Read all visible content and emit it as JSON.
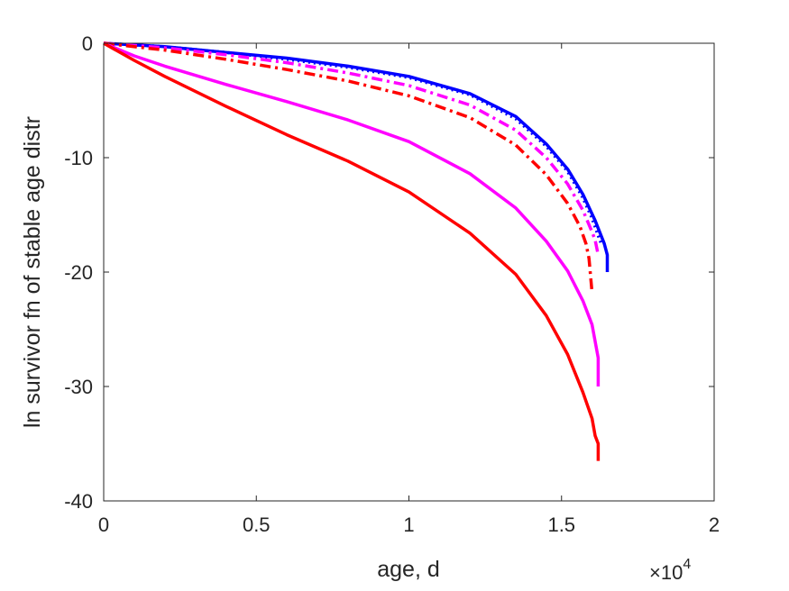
{
  "chart_data": {
    "type": "line",
    "title": "",
    "xlabel": "age, d",
    "ylabel": "ln survivor fn of stable age distr",
    "xlim": [
      0,
      20000
    ],
    "ylim": [
      -40,
      0
    ],
    "x_ticks": [
      0,
      5000,
      10000,
      15000,
      20000
    ],
    "x_tick_labels": [
      "0",
      "0.5",
      "1",
      "1.5",
      "2"
    ],
    "x_multiplier_base": "×10",
    "x_multiplier_exponent": "4",
    "y_ticks": [
      -40,
      -30,
      -20,
      -10,
      0
    ],
    "y_tick_labels": [
      "-40",
      "-30",
      "-20",
      "-10",
      "0"
    ],
    "grid": false,
    "legend": "none",
    "series": [
      {
        "color": "#0000ff",
        "style": "solid",
        "x": [
          0,
          2000,
          4000,
          6000,
          8000,
          10000,
          12000,
          13500,
          14500,
          15200,
          15700,
          16100,
          16400,
          16500,
          16500
        ],
        "y": [
          0,
          -0.3,
          -0.8,
          -1.3,
          -2.0,
          -2.9,
          -4.4,
          -6.4,
          -8.8,
          -11.0,
          -13.2,
          -15.5,
          -17.5,
          -18.5,
          -20.0
        ]
      },
      {
        "color": "#0000ff",
        "style": "dotted",
        "x": [
          0,
          2000,
          4000,
          6000,
          8000,
          10000,
          12000,
          13500,
          14500,
          15200,
          15700,
          16000,
          16200,
          16300
        ],
        "y": [
          0,
          -0.3,
          -0.8,
          -1.4,
          -2.1,
          -3.0,
          -4.5,
          -6.6,
          -9.0,
          -11.2,
          -13.5,
          -15.3,
          -16.8,
          -17.5
        ]
      },
      {
        "color": "#ff00ff",
        "style": "dashdot",
        "x": [
          0,
          2000,
          4000,
          6000,
          8000,
          10000,
          12000,
          13500,
          14500,
          15200,
          15700,
          16000,
          16100,
          16200
        ],
        "y": [
          0,
          -0.4,
          -1.0,
          -1.7,
          -2.6,
          -3.7,
          -5.4,
          -7.6,
          -10.0,
          -12.3,
          -14.6,
          -16.5,
          -17.2,
          -18.5
        ]
      },
      {
        "color": "#ff0000",
        "style": "dashdot",
        "x": [
          0,
          2000,
          4000,
          6000,
          8000,
          10000,
          12000,
          13500,
          14500,
          15200,
          15600,
          15800,
          15900,
          16000
        ],
        "y": [
          0,
          -0.6,
          -1.4,
          -2.3,
          -3.3,
          -4.6,
          -6.5,
          -8.9,
          -11.5,
          -14.0,
          -16.0,
          -17.5,
          -18.8,
          -21.8
        ]
      },
      {
        "color": "#ff00ff",
        "style": "solid",
        "x": [
          0,
          1000,
          2000,
          4000,
          6000,
          8000,
          10000,
          12000,
          13500,
          14500,
          15200,
          15700,
          16000,
          16200,
          16200
        ],
        "y": [
          0,
          -1.1,
          -2.0,
          -3.6,
          -5.1,
          -6.7,
          -8.6,
          -11.4,
          -14.4,
          -17.3,
          -19.9,
          -22.5,
          -24.6,
          -27.5,
          -30.0
        ]
      },
      {
        "color": "#ff0000",
        "style": "solid",
        "x": [
          0,
          1000,
          2000,
          4000,
          6000,
          8000,
          10000,
          12000,
          13500,
          14500,
          15200,
          15700,
          16000,
          16100,
          16200,
          16200
        ],
        "y": [
          0,
          -1.5,
          -2.9,
          -5.5,
          -8.0,
          -10.3,
          -13.0,
          -16.6,
          -20.2,
          -23.8,
          -27.2,
          -30.5,
          -32.8,
          -34.3,
          -35.0,
          -36.5
        ]
      }
    ]
  }
}
